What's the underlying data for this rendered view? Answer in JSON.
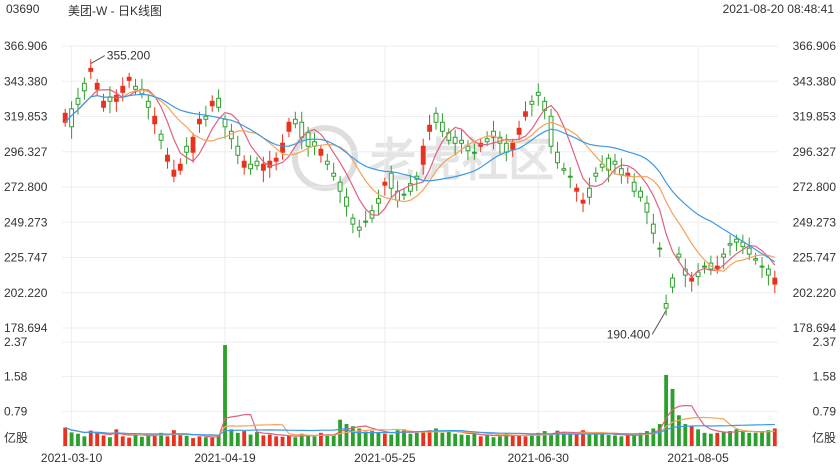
{
  "header": {
    "code": "03690",
    "name": "美团-W - 日K线图",
    "datetime": "2021-08-20 08:48:41"
  },
  "watermark": "老虎社区",
  "colors": {
    "up": "#2ca02c",
    "down": "#e8321e",
    "ma_blue": "#3b9ae8",
    "ma_orange": "#f5a35b",
    "ma_pink": "#e0607e",
    "grid": "#eeeeee",
    "axis_text": "#333333"
  },
  "chart_data": [
    {
      "type": "candlestick",
      "y_ticks": [
        "366.906",
        "343.380",
        "319.853",
        "296.327",
        "272.800",
        "249.273",
        "225.747",
        "202.220",
        "178.694"
      ],
      "ylim": [
        178.694,
        366.906
      ],
      "annotations": [
        {
          "label": "355.200",
          "value": 355.2,
          "index": 4
        },
        {
          "label": "190.400",
          "value": 190.4,
          "index": 94
        }
      ],
      "x_labels": [
        {
          "label": "2021-03-10",
          "index": 1
        },
        {
          "label": "2021-04-19",
          "index": 25
        },
        {
          "label": "2021-05-25",
          "index": 50
        },
        {
          "label": "2021-06-30",
          "index": 74
        },
        {
          "label": "2021-08-05",
          "index": 99
        }
      ],
      "count": 112,
      "closes": [
        316,
        325,
        332,
        342,
        350,
        338,
        326,
        333,
        330,
        336,
        344,
        340,
        338,
        330,
        315,
        308,
        290,
        280,
        284,
        300,
        296,
        315,
        320,
        327,
        332,
        318,
        310,
        300,
        286,
        288,
        290,
        284,
        286,
        290,
        296,
        310,
        318,
        316,
        309,
        303,
        294,
        290,
        282,
        276,
        266,
        252,
        246,
        250,
        257,
        265,
        274,
        282,
        270,
        268,
        275,
        280,
        288,
        310,
        322,
        316,
        309,
        306,
        304,
        300,
        296,
        300,
        305,
        310,
        306,
        302,
        298,
        308,
        320,
        330,
        336,
        330,
        320,
        296,
        285,
        280,
        270,
        262,
        272,
        282,
        288,
        292,
        290,
        285,
        280,
        276,
        270,
        262,
        248,
        232,
        195,
        212,
        228,
        218,
        210,
        216,
        220,
        222,
        218,
        228,
        235,
        238,
        236,
        232,
        225,
        220,
        218,
        208
      ],
      "opens": [
        322,
        313,
        328,
        337,
        352,
        342,
        330,
        330,
        334,
        340,
        346,
        338,
        335,
        326,
        320,
        304,
        294,
        284,
        288,
        296,
        306,
        318,
        318,
        330,
        326,
        313,
        305,
        294,
        290,
        285,
        287,
        288,
        290,
        292,
        302,
        316,
        315,
        306,
        300,
        300,
        298,
        288,
        280,
        270,
        260,
        248,
        244,
        250,
        252,
        262,
        276,
        272,
        264,
        268,
        270,
        278,
        300,
        314,
        316,
        310,
        304,
        302,
        302,
        297,
        296,
        302,
        303,
        306,
        302,
        296,
        302,
        312,
        323,
        328,
        334,
        324,
        300,
        289,
        284,
        280,
        272,
        264,
        266,
        280,
        286,
        284,
        288,
        281,
        282,
        270,
        266,
        256,
        242,
        232,
        192,
        206,
        226,
        214,
        212,
        213,
        220,
        218,
        220,
        226,
        234,
        236,
        233,
        228,
        224,
        220,
        214,
        212
      ],
      "volumes_label_ticks": [
        "2.37",
        "1.58",
        "0.79",
        "亿股"
      ],
      "volume_ylim": [
        0,
        2.37
      ],
      "volumes": [
        0.42,
        0.31,
        0.28,
        0.22,
        0.35,
        0.3,
        0.24,
        0.2,
        0.38,
        0.22,
        0.19,
        0.28,
        0.21,
        0.26,
        0.24,
        0.3,
        0.22,
        0.36,
        0.27,
        0.23,
        0.18,
        0.22,
        0.2,
        0.19,
        0.25,
        2.3,
        0.38,
        0.3,
        0.34,
        0.26,
        0.32,
        0.24,
        0.26,
        0.22,
        0.21,
        0.24,
        0.2,
        0.28,
        0.25,
        0.22,
        0.3,
        0.24,
        0.26,
        0.6,
        0.5,
        0.45,
        0.4,
        0.33,
        0.34,
        0.3,
        0.28,
        0.26,
        0.36,
        0.38,
        0.28,
        0.3,
        0.32,
        0.36,
        0.4,
        0.3,
        0.34,
        0.28,
        0.26,
        0.25,
        0.29,
        0.22,
        0.24,
        0.2,
        0.22,
        0.28,
        0.26,
        0.24,
        0.22,
        0.26,
        0.3,
        0.34,
        0.26,
        0.35,
        0.32,
        0.28,
        0.3,
        0.36,
        0.26,
        0.28,
        0.3,
        0.25,
        0.24,
        0.22,
        0.24,
        0.26,
        0.3,
        0.34,
        0.4,
        0.5,
        1.62,
        1.3,
        0.7,
        0.5,
        0.45,
        0.38,
        0.3,
        0.28,
        0.3,
        0.33,
        0.34,
        0.38,
        0.32,
        0.3,
        0.3,
        0.34,
        0.36,
        0.4
      ]
    }
  ]
}
